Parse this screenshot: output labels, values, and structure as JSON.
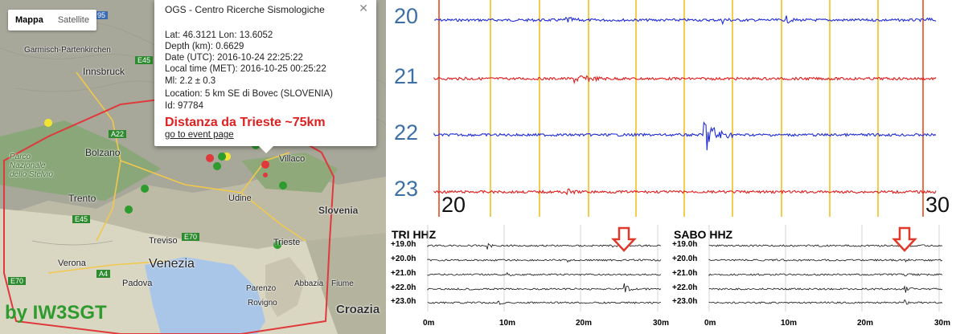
{
  "map": {
    "type_controls": [
      "Mappa",
      "Satellite"
    ],
    "labels": [
      "Garmisch-Partenkirchen",
      "Innsbruck",
      "Bolzano",
      "Trento",
      "Udine",
      "Villaco",
      "Slovenia",
      "Treviso",
      "Venezia",
      "Verona",
      "Padova",
      "Trieste",
      "Parenzo",
      "Abbazia",
      "Fiume",
      "Rovigno",
      "Croazia",
      "Parco Nazionale dello Stelvio"
    ],
    "road_badges": [
      "95",
      "E45",
      "A22",
      "E45",
      "E70",
      "E70",
      "A4"
    ],
    "accent_color": "#e0393b"
  },
  "popup": {
    "title": "OGS - Centro Ricerche Sismologiche",
    "lines": [
      "Lat: 46.3121 Lon: 13.6052",
      "Depth (km): 0.6629",
      "Date (UTC): 2016-10-24 22:25:22",
      "Local time (MET): 2016-10-25 00:25:22",
      "Ml: 2.2 ± 0.3",
      "Location: 5 km SE di Bovec (SLOVENIA)",
      "Id: 97784"
    ],
    "distance": "Distanza da Trieste ~75km",
    "link": "go to event page",
    "close_icon": "close-icon"
  },
  "credit": "by IW3SGT",
  "helicorder": {
    "hours": [
      "20",
      "21",
      "22",
      "23"
    ],
    "minute_labels": [
      "20",
      "30"
    ],
    "colors": [
      "#1f2bd6",
      "#e01b1b"
    ]
  },
  "panels": [
    {
      "title": "TRI HHZ",
      "rows": [
        "+19.0h",
        "+20.0h",
        "+21.0h",
        "+22.0h",
        "+23.0h"
      ],
      "ticks": [
        "0m",
        "10m",
        "20m",
        "30m"
      ]
    },
    {
      "title": "SABO HHZ",
      "rows": [
        "+19.0h",
        "+20.0h",
        "+21.0h",
        "+22.0h",
        "+23.0h"
      ],
      "ticks": [
        "0m",
        "10m",
        "20m",
        "30m"
      ]
    }
  ]
}
